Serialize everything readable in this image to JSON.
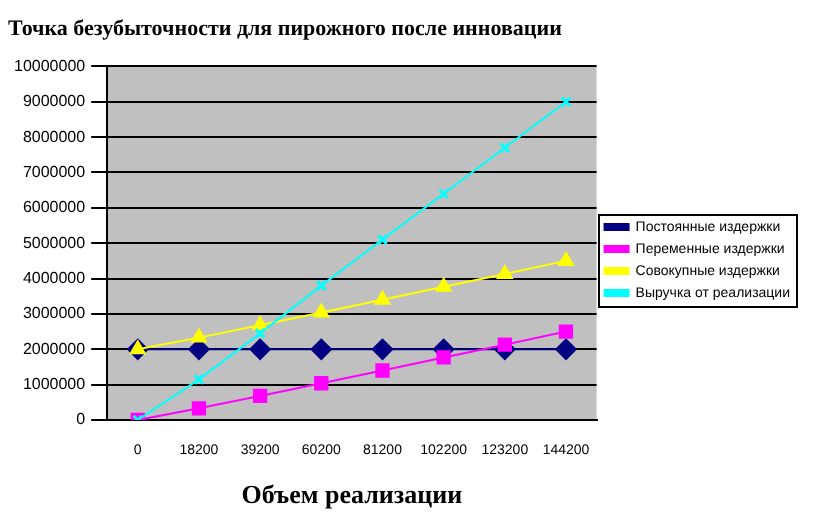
{
  "chart_data": {
    "type": "line",
    "title": "Точка безубыточности для пирожного после инновации",
    "xlabel": "Объем реализации",
    "categories": [
      "0",
      "18200",
      "39200",
      "60200",
      "81200",
      "102200",
      "123200",
      "144200"
    ],
    "series": [
      {
        "name": "Постоянные издержки",
        "color": "#000080",
        "marker": "diamond",
        "values": [
          2000000,
          2000000,
          2000000,
          2000000,
          2000000,
          2000000,
          2000000,
          2000000
        ]
      },
      {
        "name": "Переменные издержки",
        "color": "#ff00ff",
        "marker": "square",
        "values": [
          0,
          330000,
          680000,
          1040000,
          1400000,
          1770000,
          2130000,
          2500000
        ]
      },
      {
        "name": "Совокупные издержки",
        "color": "#ffff00",
        "marker": "triangle",
        "values": [
          2000000,
          2330000,
          2680000,
          3040000,
          3400000,
          3770000,
          4130000,
          4500000
        ]
      },
      {
        "name": "Выручка от реализации",
        "color": "#00ffff",
        "marker": "cross",
        "values": [
          0,
          1150000,
          2450000,
          3800000,
          5100000,
          6400000,
          7700000,
          9000000
        ]
      }
    ],
    "ylim": [
      0,
      10000000
    ],
    "yticks": [
      0,
      1000000,
      2000000,
      3000000,
      4000000,
      5000000,
      6000000,
      7000000,
      8000000,
      9000000,
      10000000
    ],
    "grid": "y",
    "legend": "right"
  }
}
